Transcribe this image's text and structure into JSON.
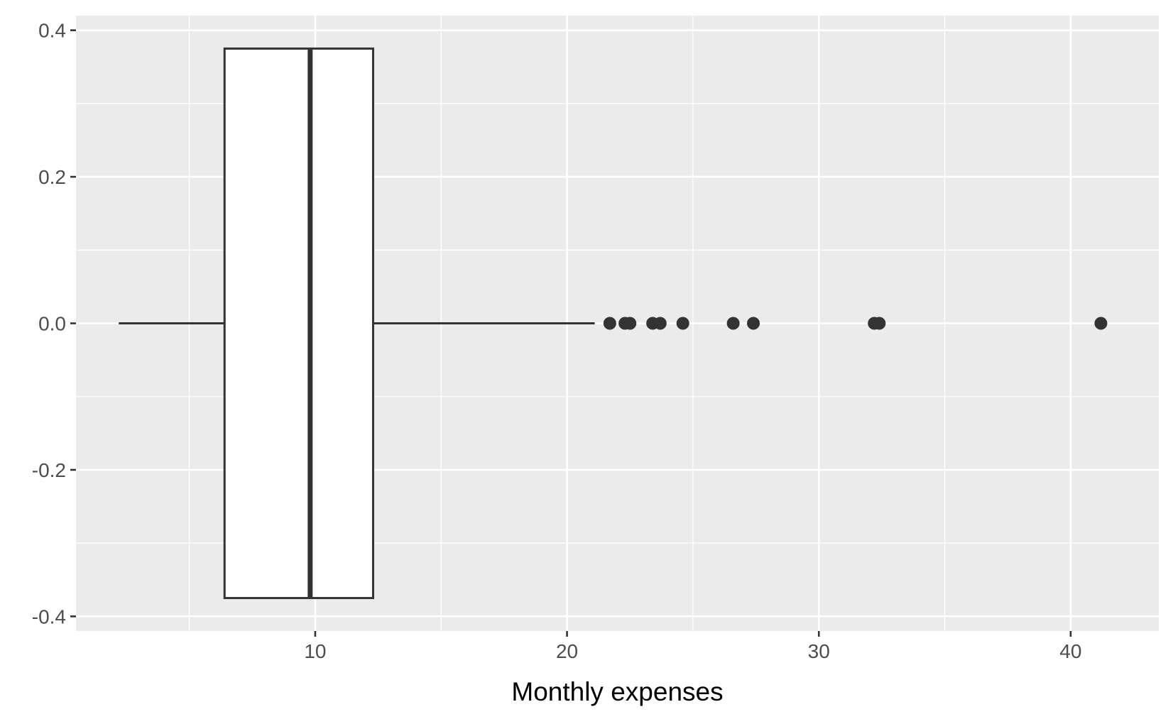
{
  "chart_data": {
    "type": "boxplot",
    "orientation": "horizontal",
    "xlabel": "Monthly expenses",
    "ylabel": "",
    "title": "",
    "xlim": [
      0.5,
      43.5
    ],
    "ylim": [
      -0.42,
      0.42
    ],
    "x_ticks": [
      10,
      20,
      30,
      40
    ],
    "x_minor_ticks": [
      5,
      15,
      25,
      35
    ],
    "y_ticks": [
      -0.4,
      -0.2,
      0.0,
      0.2,
      0.4
    ],
    "y_tick_labels": [
      "-0.4",
      "-0.2",
      "0.0",
      "0.2",
      "0.4"
    ],
    "y_minor_ticks": [
      -0.3,
      -0.1,
      0.1,
      0.3
    ],
    "grid": true,
    "box": {
      "whisker_low": 2.2,
      "q1": 6.4,
      "median": 9.8,
      "q3": 12.3,
      "whisker_high": 21.1,
      "y_center": 0.0,
      "half_width": 0.375
    },
    "outliers": [
      21.7,
      22.3,
      22.5,
      23.4,
      23.7,
      24.6,
      26.6,
      27.4,
      32.2,
      32.4,
      41.2
    ],
    "colors": {
      "panel_background": "#ebebeb",
      "grid_line": "#ffffff",
      "box_fill": "#ffffff",
      "box_line": "#333333",
      "outlier": "#333333",
      "tick_text": "#4d4d4d",
      "axis_title": "#000000"
    }
  }
}
